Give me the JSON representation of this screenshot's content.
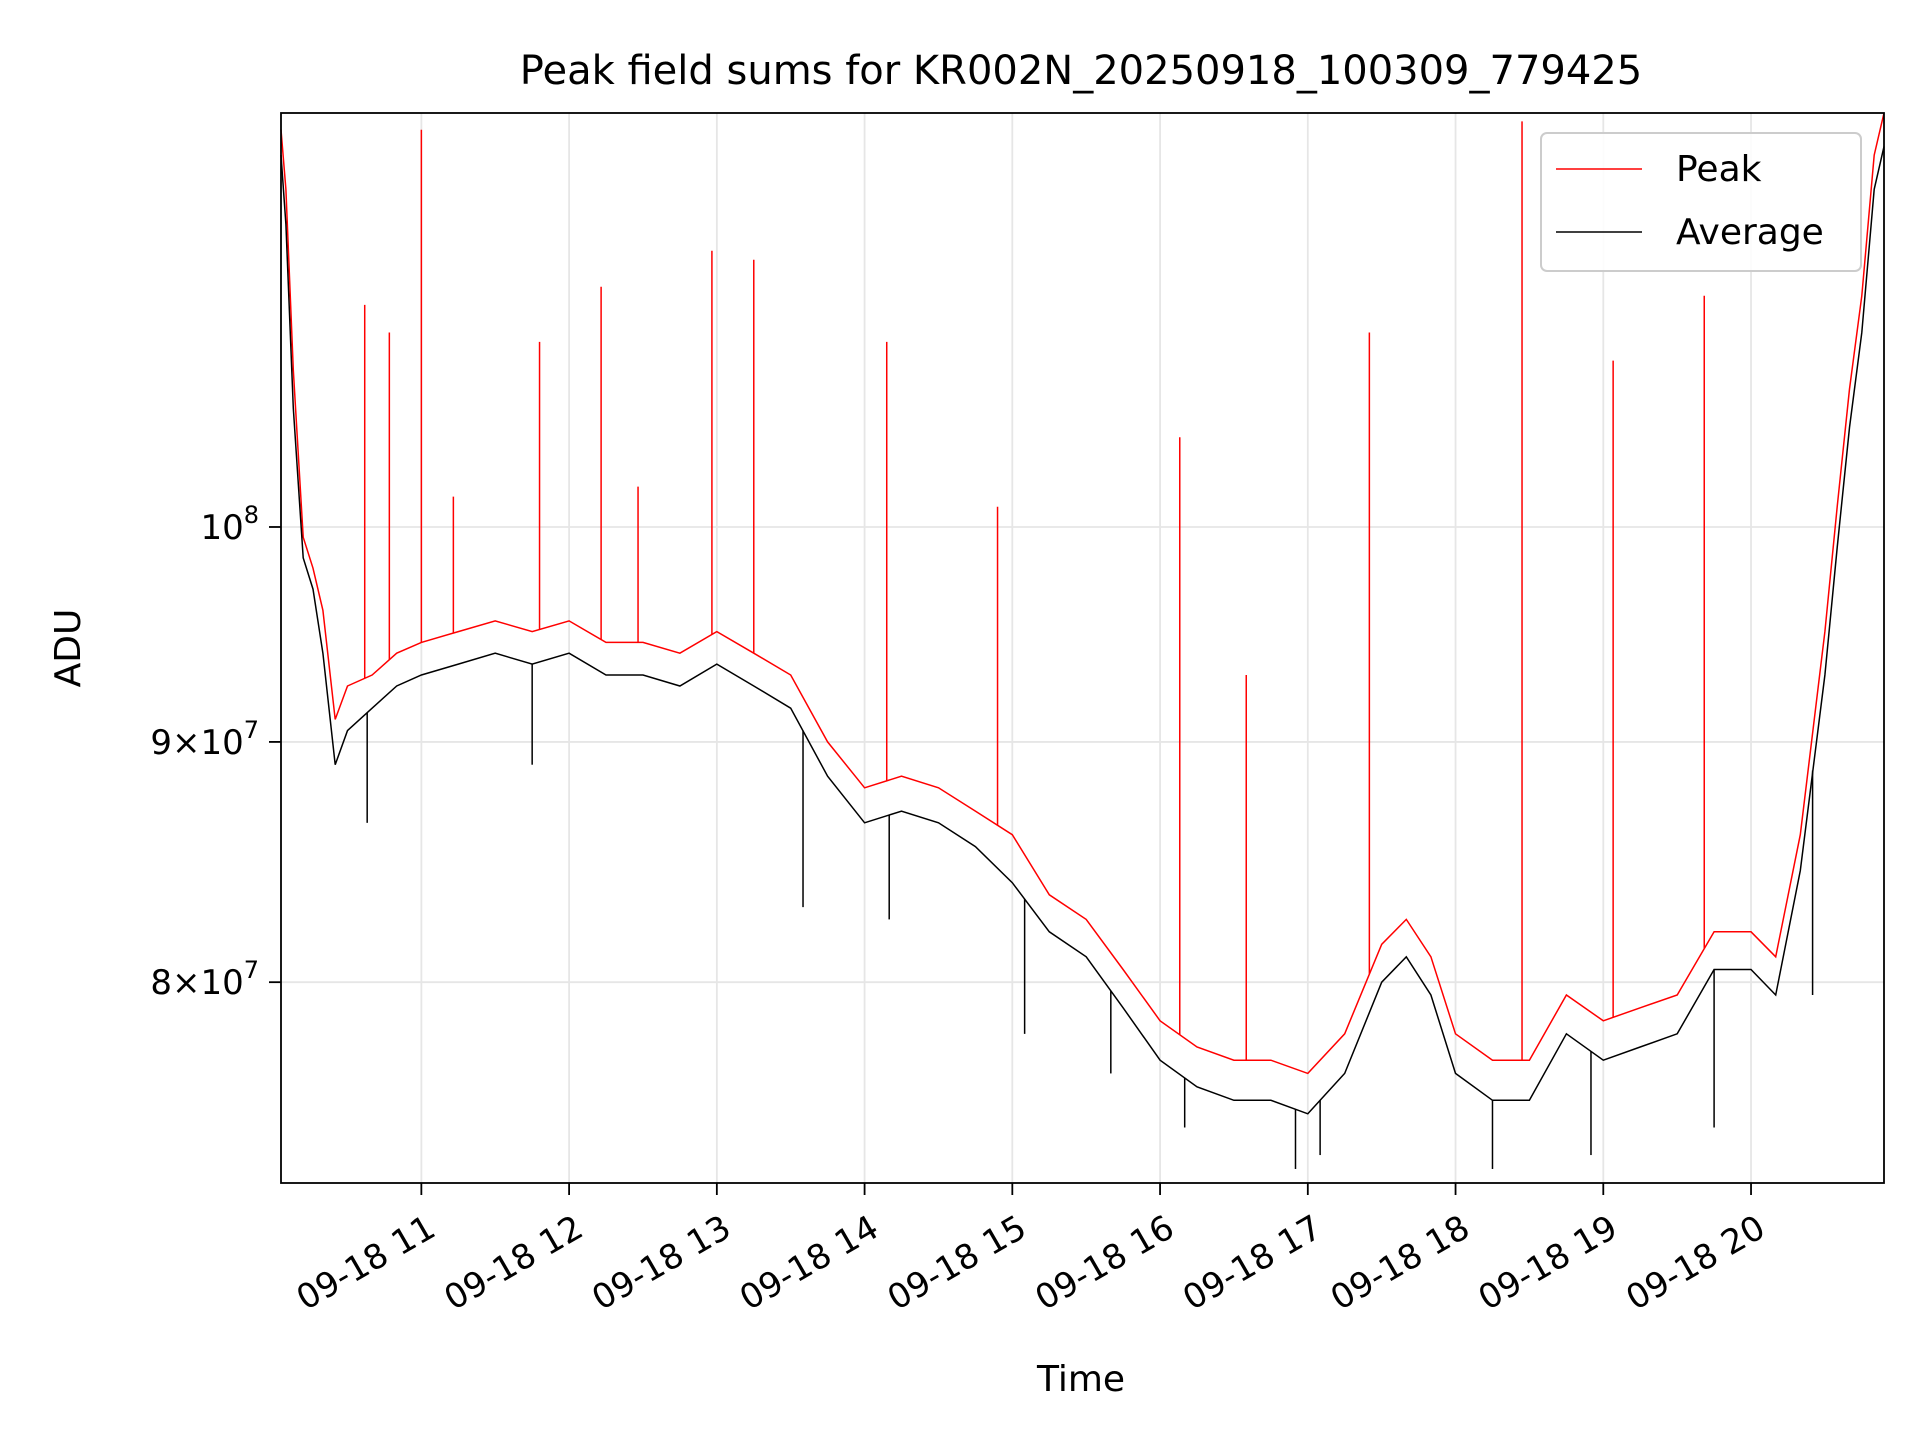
{
  "chart_data": {
    "type": "line",
    "title": "Peak field sums for KR002N_20250918_100309_779425",
    "xlabel": "Time",
    "ylabel": "ADU",
    "x_scale": "time",
    "y_scale": "log",
    "xlim": [
      "2025-09-18 10:03",
      "2025-09-18 20:54"
    ],
    "ylim": [
      72500000,
      122500000
    ],
    "x_ticks": [
      {
        "value": "2025-09-18 11:00",
        "label": "09-18 11"
      },
      {
        "value": "2025-09-18 12:00",
        "label": "09-18 12"
      },
      {
        "value": "2025-09-18 13:00",
        "label": "09-18 13"
      },
      {
        "value": "2025-09-18 14:00",
        "label": "09-18 14"
      },
      {
        "value": "2025-09-18 15:00",
        "label": "09-18 15"
      },
      {
        "value": "2025-09-18 16:00",
        "label": "09-18 16"
      },
      {
        "value": "2025-09-18 17:00",
        "label": "09-18 17"
      },
      {
        "value": "2025-09-18 18:00",
        "label": "09-18 18"
      },
      {
        "value": "2025-09-18 19:00",
        "label": "09-18 19"
      },
      {
        "value": "2025-09-18 20:00",
        "label": "09-18 20"
      }
    ],
    "y_ticks": [
      {
        "value": 80000000,
        "base": "8",
        "exp": "7"
      },
      {
        "value": 90000000,
        "base": "9",
        "exp": "7"
      },
      {
        "value": 100000000,
        "base": "",
        "exp": "8"
      }
    ],
    "grid": true,
    "legend_position": "upper right",
    "series": [
      {
        "name": "Peak",
        "color": "#ff0000",
        "x": [
          "2025-09-18 10:03",
          "2025-09-18 10:05",
          "2025-09-18 10:08",
          "2025-09-18 10:12",
          "2025-09-18 10:16",
          "2025-09-18 10:20",
          "2025-09-18 10:25",
          "2025-09-18 10:30",
          "2025-09-18 10:40",
          "2025-09-18 10:50",
          "2025-09-18 11:00",
          "2025-09-18 11:15",
          "2025-09-18 11:30",
          "2025-09-18 11:45",
          "2025-09-18 12:00",
          "2025-09-18 12:15",
          "2025-09-18 12:30",
          "2025-09-18 12:45",
          "2025-09-18 13:00",
          "2025-09-18 13:15",
          "2025-09-18 13:30",
          "2025-09-18 13:45",
          "2025-09-18 14:00",
          "2025-09-18 14:15",
          "2025-09-18 14:30",
          "2025-09-18 14:45",
          "2025-09-18 15:00",
          "2025-09-18 15:15",
          "2025-09-18 15:30",
          "2025-09-18 15:45",
          "2025-09-18 16:00",
          "2025-09-18 16:15",
          "2025-09-18 16:30",
          "2025-09-18 16:45",
          "2025-09-18 17:00",
          "2025-09-18 17:15",
          "2025-09-18 17:30",
          "2025-09-18 17:40",
          "2025-09-18 17:50",
          "2025-09-18 18:00",
          "2025-09-18 18:15",
          "2025-09-18 18:30",
          "2025-09-18 18:45",
          "2025-09-18 19:00",
          "2025-09-18 19:15",
          "2025-09-18 19:30",
          "2025-09-18 19:45",
          "2025-09-18 20:00",
          "2025-09-18 20:10",
          "2025-09-18 20:20",
          "2025-09-18 20:30",
          "2025-09-18 20:35",
          "2025-09-18 20:40",
          "2025-09-18 20:45",
          "2025-09-18 20:50",
          "2025-09-18 20:54"
        ],
        "y": [
          121500000,
          118000000,
          108000000,
          99500000,
          98000000,
          96000000,
          91000000,
          92500000,
          93000000,
          94000000,
          94500000,
          95000000,
          95500000,
          95000000,
          95500000,
          94500000,
          94500000,
          94000000,
          95000000,
          94000000,
          93000000,
          90000000,
          88000000,
          88500000,
          88000000,
          87000000,
          86000000,
          83500000,
          82500000,
          80500000,
          78500000,
          77500000,
          77000000,
          77000000,
          76500000,
          78000000,
          81500000,
          82500000,
          81000000,
          78000000,
          77000000,
          77000000,
          79500000,
          78500000,
          79000000,
          79500000,
          82000000,
          82000000,
          81000000,
          86000000,
          95000000,
          101000000,
          107000000,
          112000000,
          120000000,
          122500000
        ],
        "spikes": [
          {
            "x": "2025-09-18 10:37",
            "y": 111500000
          },
          {
            "x": "2025-09-18 10:47",
            "y": 110000000
          },
          {
            "x": "2025-09-18 11:00",
            "y": 121500000
          },
          {
            "x": "2025-09-18 11:13",
            "y": 101500000
          },
          {
            "x": "2025-09-18 11:48",
            "y": 109500000
          },
          {
            "x": "2025-09-18 12:13",
            "y": 112500000
          },
          {
            "x": "2025-09-18 12:28",
            "y": 102000000
          },
          {
            "x": "2025-09-18 12:58",
            "y": 114500000
          },
          {
            "x": "2025-09-18 13:15",
            "y": 114000000
          },
          {
            "x": "2025-09-18 14:09",
            "y": 109500000
          },
          {
            "x": "2025-09-18 14:54",
            "y": 101000000
          },
          {
            "x": "2025-09-18 16:08",
            "y": 104500000
          },
          {
            "x": "2025-09-18 16:35",
            "y": 93000000
          },
          {
            "x": "2025-09-18 17:25",
            "y": 110000000
          },
          {
            "x": "2025-09-18 18:27",
            "y": 122000000
          },
          {
            "x": "2025-09-18 19:04",
            "y": 108500000
          },
          {
            "x": "2025-09-18 19:41",
            "y": 112000000
          }
        ]
      },
      {
        "name": "Average",
        "color": "#000000",
        "x": [
          "2025-09-18 10:03",
          "2025-09-18 10:05",
          "2025-09-18 10:08",
          "2025-09-18 10:12",
          "2025-09-18 10:16",
          "2025-09-18 10:20",
          "2025-09-18 10:25",
          "2025-09-18 10:30",
          "2025-09-18 10:40",
          "2025-09-18 10:50",
          "2025-09-18 11:00",
          "2025-09-18 11:15",
          "2025-09-18 11:30",
          "2025-09-18 11:45",
          "2025-09-18 12:00",
          "2025-09-18 12:15",
          "2025-09-18 12:30",
          "2025-09-18 12:45",
          "2025-09-18 13:00",
          "2025-09-18 13:15",
          "2025-09-18 13:30",
          "2025-09-18 13:45",
          "2025-09-18 14:00",
          "2025-09-18 14:15",
          "2025-09-18 14:30",
          "2025-09-18 14:45",
          "2025-09-18 15:00",
          "2025-09-18 15:15",
          "2025-09-18 15:30",
          "2025-09-18 15:45",
          "2025-09-18 16:00",
          "2025-09-18 16:15",
          "2025-09-18 16:30",
          "2025-09-18 16:45",
          "2025-09-18 17:00",
          "2025-09-18 17:15",
          "2025-09-18 17:30",
          "2025-09-18 17:40",
          "2025-09-18 17:50",
          "2025-09-18 18:00",
          "2025-09-18 18:15",
          "2025-09-18 18:30",
          "2025-09-18 18:45",
          "2025-09-18 19:00",
          "2025-09-18 19:15",
          "2025-09-18 19:30",
          "2025-09-18 19:45",
          "2025-09-18 20:00",
          "2025-09-18 20:10",
          "2025-09-18 20:20",
          "2025-09-18 20:30",
          "2025-09-18 20:35",
          "2025-09-18 20:40",
          "2025-09-18 20:45",
          "2025-09-18 20:50",
          "2025-09-18 20:54"
        ],
        "y": [
          120000000,
          116000000,
          106000000,
          98500000,
          97000000,
          94000000,
          89000000,
          90500000,
          91500000,
          92500000,
          93000000,
          93500000,
          94000000,
          93500000,
          94000000,
          93000000,
          93000000,
          92500000,
          93500000,
          92500000,
          91500000,
          88500000,
          86500000,
          87000000,
          86500000,
          85500000,
          84000000,
          82000000,
          81000000,
          79000000,
          77000000,
          76000000,
          75500000,
          75500000,
          75000000,
          76500000,
          80000000,
          81000000,
          79500000,
          76500000,
          75500000,
          75500000,
          78000000,
          77000000,
          77500000,
          78000000,
          80500000,
          80500000,
          79500000,
          84500000,
          93000000,
          99000000,
          105000000,
          110000000,
          118000000,
          120500000
        ],
        "dips": [
          {
            "x": "2025-09-18 10:38",
            "y": 86500000
          },
          {
            "x": "2025-09-18 11:45",
            "y": 89000000
          },
          {
            "x": "2025-09-18 13:35",
            "y": 83000000
          },
          {
            "x": "2025-09-18 14:10",
            "y": 82500000
          },
          {
            "x": "2025-09-18 15:05",
            "y": 78000000
          },
          {
            "x": "2025-09-18 15:40",
            "y": 76500000
          },
          {
            "x": "2025-09-18 16:10",
            "y": 74500000
          },
          {
            "x": "2025-09-18 16:55",
            "y": 73000000
          },
          {
            "x": "2025-09-18 17:05",
            "y": 73500000
          },
          {
            "x": "2025-09-18 18:15",
            "y": 73000000
          },
          {
            "x": "2025-09-18 18:55",
            "y": 73500000
          },
          {
            "x": "2025-09-18 19:45",
            "y": 74500000
          },
          {
            "x": "2025-09-18 20:25",
            "y": 79500000
          }
        ]
      }
    ]
  }
}
